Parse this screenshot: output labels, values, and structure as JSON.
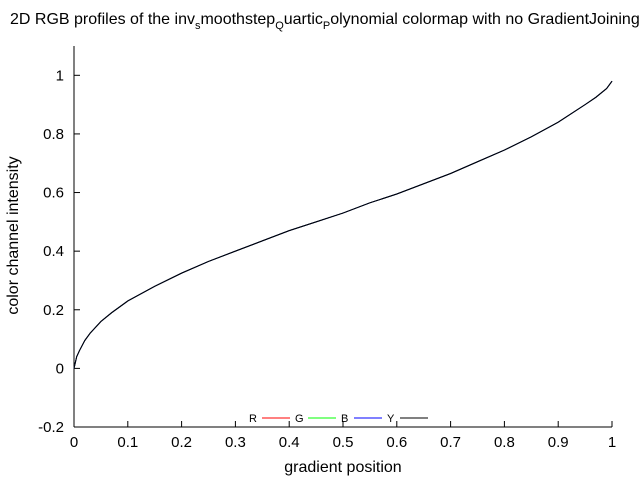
{
  "chart_data": {
    "type": "line",
    "title": {
      "parts": [
        {
          "text": "2D RGB profiles of the inv",
          "sub": false
        },
        {
          "text": "s",
          "sub": true
        },
        {
          "text": "moothstep",
          "sub": false
        },
        {
          "text": "Q",
          "sub": true
        },
        {
          "text": "uartic",
          "sub": false
        },
        {
          "text": "P",
          "sub": true
        },
        {
          "text": "olynomial colormap with no GradientJoining",
          "sub": false
        }
      ]
    },
    "xlabel": "gradient position",
    "ylabel": "color channel intensity",
    "xlim": [
      0,
      1
    ],
    "ylim": [
      -0.2,
      1.1
    ],
    "xticks": [
      "0",
      "0.1",
      "0.2",
      "0.3",
      "0.4",
      "0.5",
      "0.6",
      "0.7",
      "0.8",
      "0.9",
      "1"
    ],
    "yticks": [
      "-0.2",
      "0",
      "0.2",
      "0.4",
      "0.6",
      "0.8",
      "1"
    ],
    "grid": false,
    "legend_position": "bottom-center",
    "series": [
      {
        "name": "R",
        "color": "#ff0000",
        "x": [
          0,
          0.005,
          0.01,
          0.02,
          0.03,
          0.05,
          0.07,
          0.1,
          0.15,
          0.2,
          0.25,
          0.3,
          0.35,
          0.4,
          0.45,
          0.5,
          0.55,
          0.6,
          0.65,
          0.7,
          0.75,
          0.8,
          0.85,
          0.9,
          0.95,
          0.97,
          0.99,
          1
        ],
        "y": [
          0.0,
          0.04,
          0.06,
          0.095,
          0.12,
          0.16,
          0.19,
          0.23,
          0.28,
          0.325,
          0.365,
          0.4,
          0.435,
          0.47,
          0.5,
          0.53,
          0.565,
          0.595,
          0.63,
          0.665,
          0.705,
          0.745,
          0.79,
          0.84,
          0.9,
          0.925,
          0.955,
          0.98
        ]
      },
      {
        "name": "G",
        "color": "#00ff00",
        "x": [
          0,
          0.005,
          0.01,
          0.02,
          0.03,
          0.05,
          0.07,
          0.1,
          0.15,
          0.2,
          0.25,
          0.3,
          0.35,
          0.4,
          0.45,
          0.5,
          0.55,
          0.6,
          0.65,
          0.7,
          0.75,
          0.8,
          0.85,
          0.9,
          0.95,
          0.97,
          0.99,
          1
        ],
        "y": [
          0.0,
          0.04,
          0.06,
          0.095,
          0.12,
          0.16,
          0.19,
          0.23,
          0.28,
          0.325,
          0.365,
          0.4,
          0.435,
          0.47,
          0.5,
          0.53,
          0.565,
          0.595,
          0.63,
          0.665,
          0.705,
          0.745,
          0.79,
          0.84,
          0.9,
          0.925,
          0.955,
          0.98
        ]
      },
      {
        "name": "B",
        "color": "#0000ff",
        "x": [
          0,
          0.005,
          0.01,
          0.02,
          0.03,
          0.05,
          0.07,
          0.1,
          0.15,
          0.2,
          0.25,
          0.3,
          0.35,
          0.4,
          0.45,
          0.5,
          0.55,
          0.6,
          0.65,
          0.7,
          0.75,
          0.8,
          0.85,
          0.9,
          0.95,
          0.97,
          0.99,
          1
        ],
        "y": [
          0.0,
          0.04,
          0.06,
          0.095,
          0.12,
          0.16,
          0.19,
          0.23,
          0.28,
          0.325,
          0.365,
          0.4,
          0.435,
          0.47,
          0.5,
          0.53,
          0.565,
          0.595,
          0.63,
          0.665,
          0.705,
          0.745,
          0.79,
          0.84,
          0.9,
          0.925,
          0.955,
          0.98
        ]
      },
      {
        "name": "Y",
        "color": "#000000",
        "x": [
          0,
          0.005,
          0.01,
          0.02,
          0.03,
          0.05,
          0.07,
          0.1,
          0.15,
          0.2,
          0.25,
          0.3,
          0.35,
          0.4,
          0.45,
          0.5,
          0.55,
          0.6,
          0.65,
          0.7,
          0.75,
          0.8,
          0.85,
          0.9,
          0.95,
          0.97,
          0.99,
          1
        ],
        "y": [
          0.0,
          0.04,
          0.06,
          0.095,
          0.12,
          0.16,
          0.19,
          0.23,
          0.28,
          0.325,
          0.365,
          0.4,
          0.435,
          0.47,
          0.5,
          0.53,
          0.565,
          0.595,
          0.63,
          0.665,
          0.705,
          0.745,
          0.79,
          0.84,
          0.9,
          0.925,
          0.955,
          0.98
        ]
      }
    ]
  }
}
